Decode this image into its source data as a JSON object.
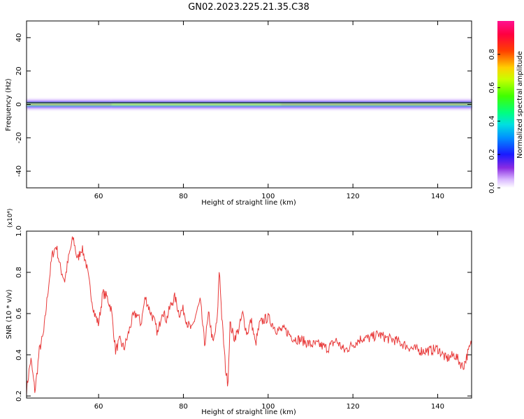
{
  "title": "GN02.2023.225.21.35.C38",
  "chart_data": [
    {
      "type": "heatmap",
      "title": "GN02.2023.225.21.35.C38",
      "xlabel": "Height of straight line (km)",
      "ylabel": "Frequency (Hz)",
      "xlim": [
        43,
        148
      ],
      "ylim": [
        -50,
        50
      ],
      "x_ticks": [
        60,
        80,
        100,
        120,
        140
      ],
      "y_ticks": [
        -40,
        -20,
        0,
        20,
        40
      ],
      "colorbar": {
        "label": "Normalized spectral amplitude",
        "range": [
          0,
          1
        ],
        "ticks": [
          "0.0",
          "0.2",
          "0.4",
          "0.6",
          "0.8"
        ]
      },
      "signal_band": {
        "center_freq": 0,
        "core_halfwidth_hz": 0.8,
        "segments": [
          {
            "x": [
              43,
              63
            ],
            "peak_amplitude": 0.85
          },
          {
            "x": [
              63,
              103
            ],
            "peak_amplitude": 0.55
          },
          {
            "x": [
              103,
              148
            ],
            "peak_amplitude": 0.9
          }
        ]
      }
    },
    {
      "type": "line",
      "xlabel": "Height of straight line (km)",
      "ylabel": "SNR (10 * v/v)",
      "y_multiplier": "(x10⁴)",
      "xlim": [
        43,
        148
      ],
      "ylim": [
        0.19,
        1.0
      ],
      "x_ticks": [
        60,
        80,
        100,
        120,
        140
      ],
      "y_ticks": [
        0.2,
        0.4,
        0.6,
        0.8,
        1.0
      ],
      "color": "#e83a3a",
      "x": [
        43,
        44,
        45,
        46,
        47,
        48,
        49,
        50,
        51,
        52,
        53,
        54,
        55,
        56,
        57,
        58,
        59,
        60,
        61,
        62,
        63,
        64,
        65,
        66,
        67,
        68,
        69,
        70,
        71,
        72,
        73,
        74,
        75,
        76,
        77,
        78,
        79,
        80,
        81,
        82,
        83,
        84,
        85,
        86,
        87,
        88,
        88.5,
        89,
        90,
        90.5,
        91,
        92,
        93,
        94,
        95,
        96,
        97,
        98,
        99,
        100,
        102,
        104,
        106,
        108,
        110,
        112,
        114,
        116,
        118,
        120,
        122,
        124,
        126,
        128,
        130,
        132,
        134,
        136,
        138,
        140,
        142,
        144,
        146,
        147,
        148
      ],
      "y": [
        0.23,
        0.38,
        0.22,
        0.42,
        0.5,
        0.7,
        0.88,
        0.93,
        0.82,
        0.76,
        0.88,
        0.97,
        0.86,
        0.92,
        0.85,
        0.72,
        0.6,
        0.55,
        0.7,
        0.68,
        0.62,
        0.42,
        0.47,
        0.43,
        0.5,
        0.58,
        0.6,
        0.55,
        0.68,
        0.62,
        0.57,
        0.5,
        0.62,
        0.57,
        0.64,
        0.68,
        0.6,
        0.62,
        0.55,
        0.52,
        0.6,
        0.66,
        0.45,
        0.6,
        0.45,
        0.57,
        0.83,
        0.6,
        0.32,
        0.26,
        0.55,
        0.48,
        0.52,
        0.6,
        0.5,
        0.57,
        0.45,
        0.55,
        0.57,
        0.58,
        0.52,
        0.52,
        0.48,
        0.47,
        0.45,
        0.45,
        0.43,
        0.47,
        0.42,
        0.45,
        0.48,
        0.48,
        0.5,
        0.48,
        0.47,
        0.45,
        0.43,
        0.42,
        0.42,
        0.43,
        0.38,
        0.4,
        0.34,
        0.4,
        0.46
      ]
    }
  ]
}
